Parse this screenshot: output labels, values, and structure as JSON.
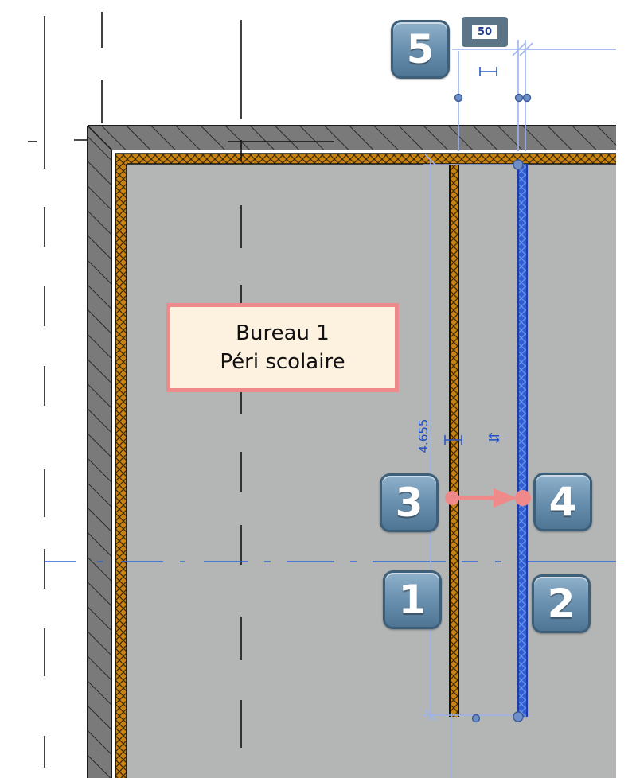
{
  "room_tag": {
    "name": "Bureau 1",
    "subtitle": "Péri scolaire"
  },
  "badges": {
    "b1": "1",
    "b2": "2",
    "b3": "3",
    "b4": "4",
    "b5": "5"
  },
  "dimensions": {
    "wall_offset": "50",
    "height_label": "4.655"
  },
  "icons": {
    "flip": "flip-orientation-icon",
    "dim_lock": "dimension-lock-icon"
  },
  "colors": {
    "floor": "#b3b6b5",
    "wall_dark": "#6f6f6f",
    "wall_finish": "#c57f12",
    "selected_wall": "#2a55c4",
    "highlight": "#f08a8a",
    "dimension": "#9db3ec"
  }
}
